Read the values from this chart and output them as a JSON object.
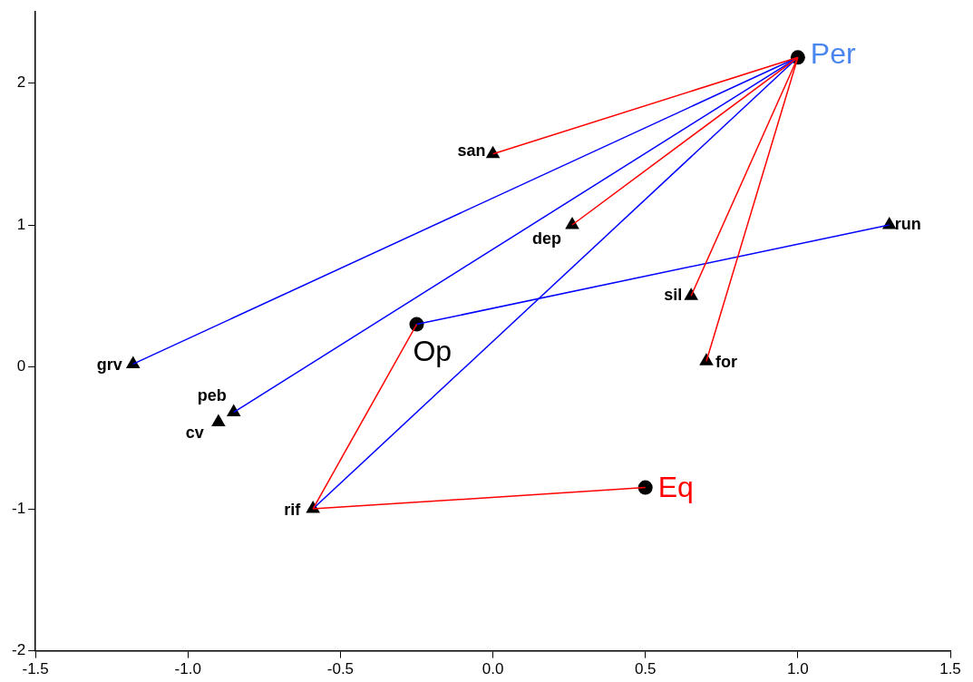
{
  "chart_data": {
    "type": "scatter",
    "xlim": [
      -1.5,
      1.5
    ],
    "xticks": [
      {
        "value": -1.5,
        "label": "-1.5"
      },
      {
        "value": -1,
        "label": "-1.0"
      },
      {
        "value": -0.5,
        "label": "-0.5"
      },
      {
        "value": 0,
        "label": "0.0"
      },
      {
        "value": 0.5,
        "label": "0.5"
      },
      {
        "value": 1,
        "label": "1.0"
      },
      {
        "value": 1.5,
        "label": "1.5"
      }
    ],
    "ylim": [
      -2,
      2.5
    ],
    "yticks": [
      -2,
      -1,
      0,
      1,
      2
    ],
    "grid": false,
    "legend": false,
    "series": [
      {
        "type": "line",
        "color": "#ff0000",
        "x": [
          1.0,
          0.0
        ],
        "values": [
          2.18,
          1.5
        ]
      },
      {
        "type": "line",
        "color": "#ff0000",
        "x": [
          1.0,
          0.26
        ],
        "values": [
          2.18,
          1.0
        ]
      },
      {
        "type": "line",
        "color": "#ff0000",
        "x": [
          1.0,
          0.65
        ],
        "values": [
          2.18,
          0.5
        ]
      },
      {
        "type": "line",
        "color": "#ff0000",
        "x": [
          1.0,
          0.7
        ],
        "values": [
          2.18,
          0.04
        ]
      },
      {
        "type": "line",
        "color": "#ff0000",
        "x": [
          -0.25,
          -0.59
        ],
        "values": [
          0.3,
          -1.0
        ]
      },
      {
        "type": "line",
        "color": "#ff0000",
        "x": [
          0.5,
          -0.59
        ],
        "values": [
          -0.85,
          -1.0
        ]
      },
      {
        "type": "line",
        "color": "#0000ff",
        "x": [
          1.0,
          -1.18
        ],
        "values": [
          2.18,
          0.02
        ]
      },
      {
        "type": "line",
        "color": "#0000ff",
        "x": [
          1.0,
          -0.85
        ],
        "values": [
          2.18,
          -0.32
        ]
      },
      {
        "type": "line",
        "color": "#0000ff",
        "x": [
          1.0,
          -0.59
        ],
        "values": [
          2.18,
          -1.0
        ]
      },
      {
        "type": "line",
        "color": "#0000ff",
        "x": [
          -0.25,
          1.3
        ],
        "values": [
          0.3,
          1.0
        ]
      },
      {
        "type": "scatter",
        "marker": "triangle",
        "color": "#000000",
        "x": [
          0.0,
          0.26,
          1.3,
          0.65,
          0.7,
          -1.18,
          -0.85,
          -0.9,
          -0.59
        ],
        "values": [
          1.5,
          1.0,
          1.0,
          0.5,
          0.04,
          0.02,
          -0.32,
          -0.39,
          -1.0
        ]
      },
      {
        "type": "scatter",
        "marker": "circle",
        "color": "#000000",
        "x": [
          1.0,
          -0.25,
          0.5
        ],
        "values": [
          2.18,
          0.3,
          -0.85
        ]
      }
    ],
    "annotations": [
      {
        "text": "san",
        "x": 0.0,
        "y": 1.5
      },
      {
        "text": "dep",
        "x": 0.26,
        "y": 1.0
      },
      {
        "text": "run",
        "x": 1.3,
        "y": 1.0
      },
      {
        "text": "sil",
        "x": 0.65,
        "y": 0.5
      },
      {
        "text": "for",
        "x": 0.7,
        "y": 0.04
      },
      {
        "text": "grv",
        "x": -1.18,
        "y": 0.02
      },
      {
        "text": "peb",
        "x": -0.85,
        "y": -0.32
      },
      {
        "text": "cv",
        "x": -0.9,
        "y": -0.39
      },
      {
        "text": "rif",
        "x": -0.59,
        "y": -1.0
      },
      {
        "text": "Per",
        "x": 1.0,
        "y": 2.18
      },
      {
        "text": "Op",
        "x": -0.25,
        "y": 0.3
      },
      {
        "text": "Eq",
        "x": 0.5,
        "y": -0.85
      }
    ]
  }
}
